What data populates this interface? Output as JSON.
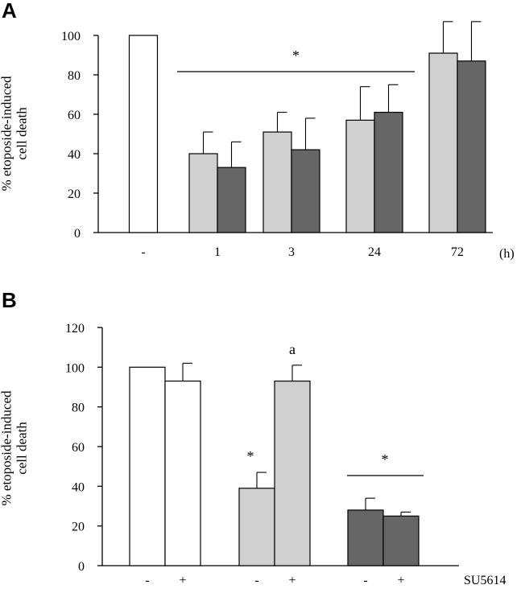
{
  "chart_data": [
    {
      "panel": "A",
      "type": "bar",
      "ylabel": [
        "% etoposide-induced",
        "cell death"
      ],
      "ylim": [
        0,
        100
      ],
      "yticks": [
        0,
        20,
        40,
        60,
        80,
        100
      ],
      "x_unit": "(h)",
      "groups": [
        {
          "label": "-",
          "bars": [
            {
              "value": 100,
              "error": 0,
              "color": "#ffffff"
            }
          ]
        },
        {
          "label": "1",
          "bars": [
            {
              "value": 40,
              "error": 11,
              "color": "#d0d0d0"
            },
            {
              "value": 33,
              "error": 13,
              "color": "#666666"
            }
          ]
        },
        {
          "label": "3",
          "bars": [
            {
              "value": 51,
              "error": 10,
              "color": "#d0d0d0"
            },
            {
              "value": 42,
              "error": 16,
              "color": "#666666"
            }
          ]
        },
        {
          "label": "24",
          "bars": [
            {
              "value": 57,
              "error": 17,
              "color": "#d0d0d0"
            },
            {
              "value": 61,
              "error": 14,
              "color": "#666666"
            }
          ]
        },
        {
          "label": "72",
          "bars": [
            {
              "value": 91,
              "error": 16,
              "color": "#d0d0d0"
            },
            {
              "value": 87,
              "error": 20,
              "color": "#666666"
            }
          ]
        }
      ],
      "annotations": [
        {
          "text": "*",
          "span_groups": [
            1,
            3
          ]
        }
      ]
    },
    {
      "panel": "B",
      "type": "bar",
      "ylabel": [
        "% etoposide-induced",
        "cell death"
      ],
      "ylim": [
        0,
        120
      ],
      "yticks": [
        0,
        20,
        40,
        60,
        80,
        100,
        120
      ],
      "x_unit": "SU5614",
      "groups": [
        {
          "bars": [
            {
              "label": "-",
              "value": 100,
              "error": 0,
              "color": "#ffffff"
            },
            {
              "label": "+",
              "value": 93,
              "error": 9,
              "color": "#ffffff"
            }
          ]
        },
        {
          "bars": [
            {
              "label": "-",
              "value": 39,
              "error": 8,
              "color": "#d0d0d0",
              "mark": "*"
            },
            {
              "label": "+",
              "value": 93,
              "error": 8,
              "color": "#d0d0d0",
              "mark": "a"
            }
          ]
        },
        {
          "bars": [
            {
              "label": "-",
              "value": 28,
              "error": 6,
              "color": "#666666"
            },
            {
              "label": "+",
              "value": 25,
              "error": 2,
              "color": "#666666"
            }
          ]
        }
      ],
      "annotations": [
        {
          "text": "*",
          "span_groups": [
            2,
            2
          ]
        }
      ]
    }
  ]
}
